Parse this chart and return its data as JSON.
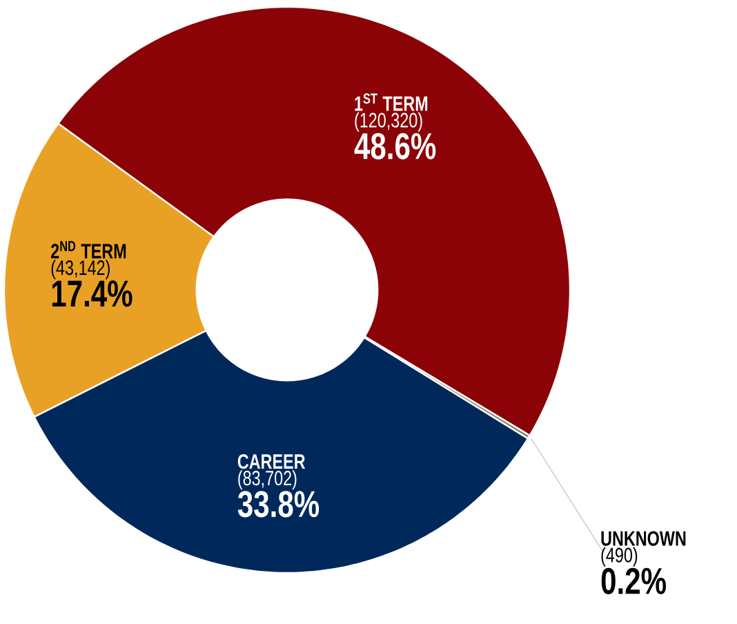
{
  "chart_data": {
    "type": "donut",
    "categories": [
      "1$^{ST}$ TERM",
      "UNKNOWN",
      "CAREER",
      "2$^{ND}$ TERM"
    ],
    "values": [
      48.6,
      0.2,
      33.8,
      17.4
    ],
    "value_labels": [
      "48.6%",
      "0.2%",
      "33.8%",
      "17.4%"
    ],
    "annotations": [
      "(120,320)",
      "(490)",
      "(83,702)",
      "(43,142)"
    ],
    "colors": [
      "#8b0306",
      "#7d7d5e",
      "#00285a",
      "#e9a125"
    ]
  }
}
